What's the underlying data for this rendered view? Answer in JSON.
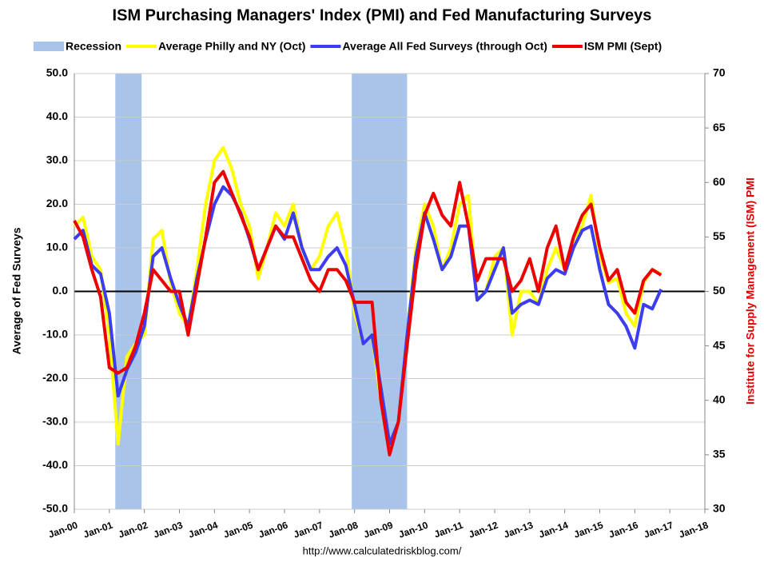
{
  "chart_data": {
    "type": "line",
    "title": "ISM Purchasing Managers' Index (PMI) and Fed Manufacturing Surveys",
    "y_label": "Average of Fed Surveys",
    "y2_label": "Institute for Supply Management (ISM) PMI",
    "source": "http://www.calculatedriskblog.com/",
    "recession": {
      "name": "Recession",
      "color": "#a9c4eb",
      "ranges": [
        [
          2001.17,
          2001.92
        ],
        [
          2007.92,
          2009.5
        ]
      ]
    },
    "x": [
      2000,
      2000.25,
      2000.5,
      2000.75,
      2001,
      2001.25,
      2001.5,
      2001.75,
      2002,
      2002.25,
      2002.5,
      2002.75,
      2003,
      2003.25,
      2003.5,
      2003.75,
      2004,
      2004.25,
      2004.5,
      2004.75,
      2005,
      2005.25,
      2005.5,
      2005.75,
      2006,
      2006.25,
      2006.5,
      2006.75,
      2007,
      2007.25,
      2007.5,
      2007.75,
      2008,
      2008.25,
      2008.5,
      2008.75,
      2009,
      2009.25,
      2009.5,
      2009.75,
      2010,
      2010.25,
      2010.5,
      2010.75,
      2011,
      2011.25,
      2011.5,
      2011.75,
      2012,
      2012.25,
      2012.5,
      2012.75,
      2013,
      2013.25,
      2013.5,
      2013.75,
      2014,
      2014.25,
      2014.5,
      2014.75,
      2015,
      2015.25,
      2015.5,
      2015.75,
      2016,
      2016.25,
      2016.5,
      2016.75
    ],
    "series": [
      {
        "name": "Average Philly and NY (Oct)",
        "color": "#ffff00",
        "axis": "y",
        "values": [
          15,
          17,
          8,
          5,
          -10,
          -35,
          -15,
          -12,
          -10,
          12,
          14,
          2,
          -5,
          -8,
          5,
          20,
          30,
          33,
          28,
          20,
          15,
          3,
          10,
          18,
          15,
          20,
          10,
          5,
          8,
          15,
          18,
          10,
          -5,
          -12,
          -10,
          -25,
          -35,
          -30,
          -10,
          10,
          20,
          15,
          5,
          10,
          20,
          22,
          -2,
          0,
          8,
          10,
          -10,
          0,
          0,
          -3,
          5,
          10,
          5,
          12,
          15,
          22,
          8,
          2,
          3,
          -5,
          -8,
          2,
          5,
          4
        ]
      },
      {
        "name": "Average All Fed Surveys (through Oct)",
        "color": "#3c3cf0",
        "axis": "y",
        "values": [
          12,
          14,
          6,
          4,
          -5,
          -24,
          -18,
          -14,
          -8,
          8,
          10,
          3,
          -3,
          -8,
          3,
          12,
          20,
          24,
          22,
          18,
          12,
          5,
          10,
          15,
          12,
          18,
          10,
          5,
          5,
          8,
          10,
          6,
          -3,
          -12,
          -10,
          -22,
          -35,
          -30,
          -10,
          8,
          18,
          12,
          5,
          8,
          15,
          15,
          -2,
          0,
          5,
          10,
          -5,
          -3,
          -2,
          -3,
          3,
          5,
          4,
          10,
          14,
          15,
          5,
          -3,
          -5,
          -8,
          -13,
          -3,
          -4,
          0.5
        ]
      },
      {
        "name": "ISM PMI (Sept)",
        "color": "#ee0000",
        "axis": "y2",
        "values": [
          56.5,
          55,
          52,
          49.5,
          43,
          42.5,
          43,
          45,
          48,
          52,
          51,
          50,
          50,
          46,
          50.5,
          55,
          60,
          61,
          59,
          57,
          55,
          52,
          54,
          56,
          55,
          55,
          53,
          51,
          50,
          52,
          52,
          51,
          49,
          49,
          49,
          40,
          35,
          38,
          45,
          52,
          57,
          59,
          57,
          56,
          60,
          56,
          51,
          53,
          53,
          53,
          50,
          51,
          53,
          50,
          54,
          56,
          52,
          55,
          57,
          58,
          54,
          51,
          52,
          49,
          48,
          51,
          52,
          51.5
        ]
      }
    ],
    "xlim": [
      2000,
      2018
    ],
    "xticks": [
      {
        "value": 2000,
        "label": "Jan-00"
      },
      {
        "value": 2001,
        "label": "Jan-01"
      },
      {
        "value": 2002,
        "label": "Jan-02"
      },
      {
        "value": 2003,
        "label": "Jan-03"
      },
      {
        "value": 2004,
        "label": "Jan-04"
      },
      {
        "value": 2005,
        "label": "Jan-05"
      },
      {
        "value": 2006,
        "label": "Jan-06"
      },
      {
        "value": 2007,
        "label": "Jan-07"
      },
      {
        "value": 2008,
        "label": "Jan-08"
      },
      {
        "value": 2009,
        "label": "Jan-09"
      },
      {
        "value": 2010,
        "label": "Jan-10"
      },
      {
        "value": 2011,
        "label": "Jan-11"
      },
      {
        "value": 2012,
        "label": "Jan-12"
      },
      {
        "value": 2013,
        "label": "Jan-13"
      },
      {
        "value": 2014,
        "label": "Jan-14"
      },
      {
        "value": 2015,
        "label": "Jan-15"
      },
      {
        "value": 2016,
        "label": "Jan-16"
      },
      {
        "value": 2017,
        "label": "Jan-17"
      },
      {
        "value": 2018,
        "label": "Jan-18"
      }
    ],
    "ylim": [
      -50,
      50
    ],
    "yticks": [
      {
        "value": -50,
        "label": "-50.0"
      },
      {
        "value": -40,
        "label": "-40.0"
      },
      {
        "value": -30,
        "label": "-30.0"
      },
      {
        "value": -20,
        "label": "-20.0"
      },
      {
        "value": -10,
        "label": "-10.0"
      },
      {
        "value": 0,
        "label": "0.0"
      },
      {
        "value": 10,
        "label": "10.0"
      },
      {
        "value": 20,
        "label": "20.0"
      },
      {
        "value": 30,
        "label": "30.0"
      },
      {
        "value": 40,
        "label": "40.0"
      },
      {
        "value": 50,
        "label": "50.0"
      }
    ],
    "y2lim": [
      30,
      70
    ],
    "y2ticks": [
      30,
      35,
      40,
      45,
      50,
      55,
      60,
      65,
      70
    ],
    "grid": true
  }
}
